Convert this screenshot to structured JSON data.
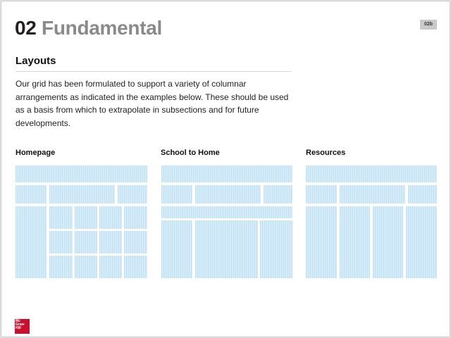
{
  "header": {
    "number": "02",
    "title": "Fundamental",
    "page_tag": "02b"
  },
  "section": {
    "heading": "Layouts",
    "intro": "Our grid has been formulated to support a variety of columnar arrangements as indicated in the examples below. These should be used as a basis from which to extrapolate in subsections and for future developments."
  },
  "layouts": [
    {
      "label": "Homepage"
    },
    {
      "label": "School to Home"
    },
    {
      "label": "Resources"
    }
  ],
  "logo": {
    "line1": "Mc",
    "line2": "Graw",
    "line3": "Hill"
  },
  "colors": {
    "grid_fill": "#d6ecf8",
    "grid_line": "#bfe0f3",
    "title_number": "#231f20",
    "title_word": "#8a8a8a",
    "logo_red": "#c8102e"
  }
}
